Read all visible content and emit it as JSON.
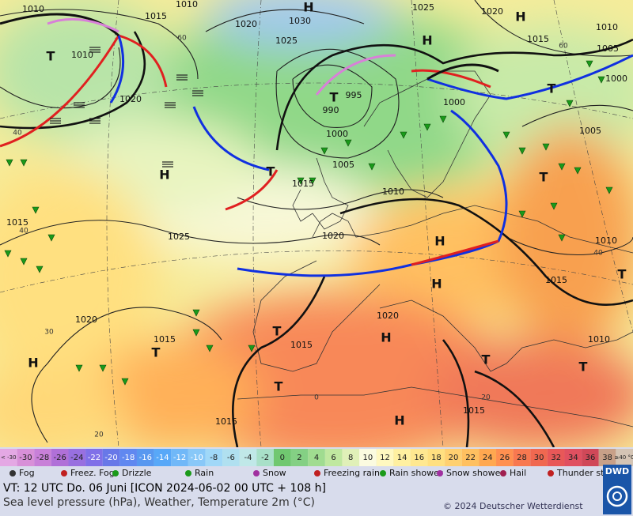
{
  "map": {
    "pressure_labels": [
      "1010",
      "1015",
      "1010",
      "1020",
      "1030",
      "1025",
      "1025",
      "1020",
      "1015",
      "1010",
      "1005",
      "1000",
      "1010",
      "1020",
      "995",
      "990",
      "1000",
      "1000",
      "1005",
      "1005",
      "1015",
      "1010",
      "1015",
      "1025",
      "1020",
      "1010",
      "1015",
      "1020",
      "1020",
      "1015",
      "1015",
      "1010",
      "1015",
      "1015"
    ],
    "centers": [
      "H",
      "H",
      "T",
      "T",
      "H",
      "T",
      "H",
      "T",
      "T",
      "H",
      "H",
      "H",
      "T",
      "T",
      "H",
      "T",
      "T",
      "T",
      "H",
      "T"
    ],
    "temperature_labels": [
      "60",
      "60",
      "40",
      "40",
      "30",
      "20",
      "40",
      "0",
      "20"
    ]
  },
  "color_scale": {
    "labels": [
      "< -30",
      -30,
      -28,
      -26,
      -24,
      -22,
      -20,
      -18,
      -16,
      -14,
      -12,
      -10,
      -8,
      -6,
      -4,
      -2,
      0,
      2,
      4,
      6,
      8,
      10,
      12,
      14,
      16,
      18,
      20,
      22,
      24,
      26,
      28,
      30,
      32,
      34,
      36,
      38,
      "≥40 °C"
    ],
    "colors": [
      "#e4a8e4",
      "#d890d8",
      "#c880d8",
      "#b070d8",
      "#9870e0",
      "#8070e8",
      "#6878e8",
      "#6088f0",
      "#5898f0",
      "#58a8f8",
      "#70b8f8",
      "#88c8f8",
      "#a0d8f8",
      "#b0e0f0",
      "#c0e8e8",
      "#a8e0c8",
      "#70c870",
      "#84d084",
      "#a0dc90",
      "#c0e8a0",
      "#e0f0b8",
      "#fbfbe0",
      "#fff8c0",
      "#fff0a0",
      "#ffe890",
      "#ffe080",
      "#ffd070",
      "#ffc060",
      "#ffa850",
      "#ff9050",
      "#f87850",
      "#f06850",
      "#e85858",
      "#e05060",
      "#d04858",
      "#c8a088",
      "#d4c4b4"
    ]
  },
  "legend": [
    "Fog",
    "Freez. Fog",
    "Drizzle",
    "Rain",
    "Snow",
    "Freezing rain",
    "Rain shower",
    "Snow shower",
    "Hail",
    "Thunder storm"
  ],
  "footer": {
    "valid_time": "VT: 12 UTC Do.  06 Juni [ICON 2024-06-02  00 UTC + 108 h]",
    "description": "Sea level pressure (hPa), Weather, Temperature 2m (°C)",
    "copyright": "© 2024 Deutscher Wetterdienst",
    "logo": "DWD"
  }
}
